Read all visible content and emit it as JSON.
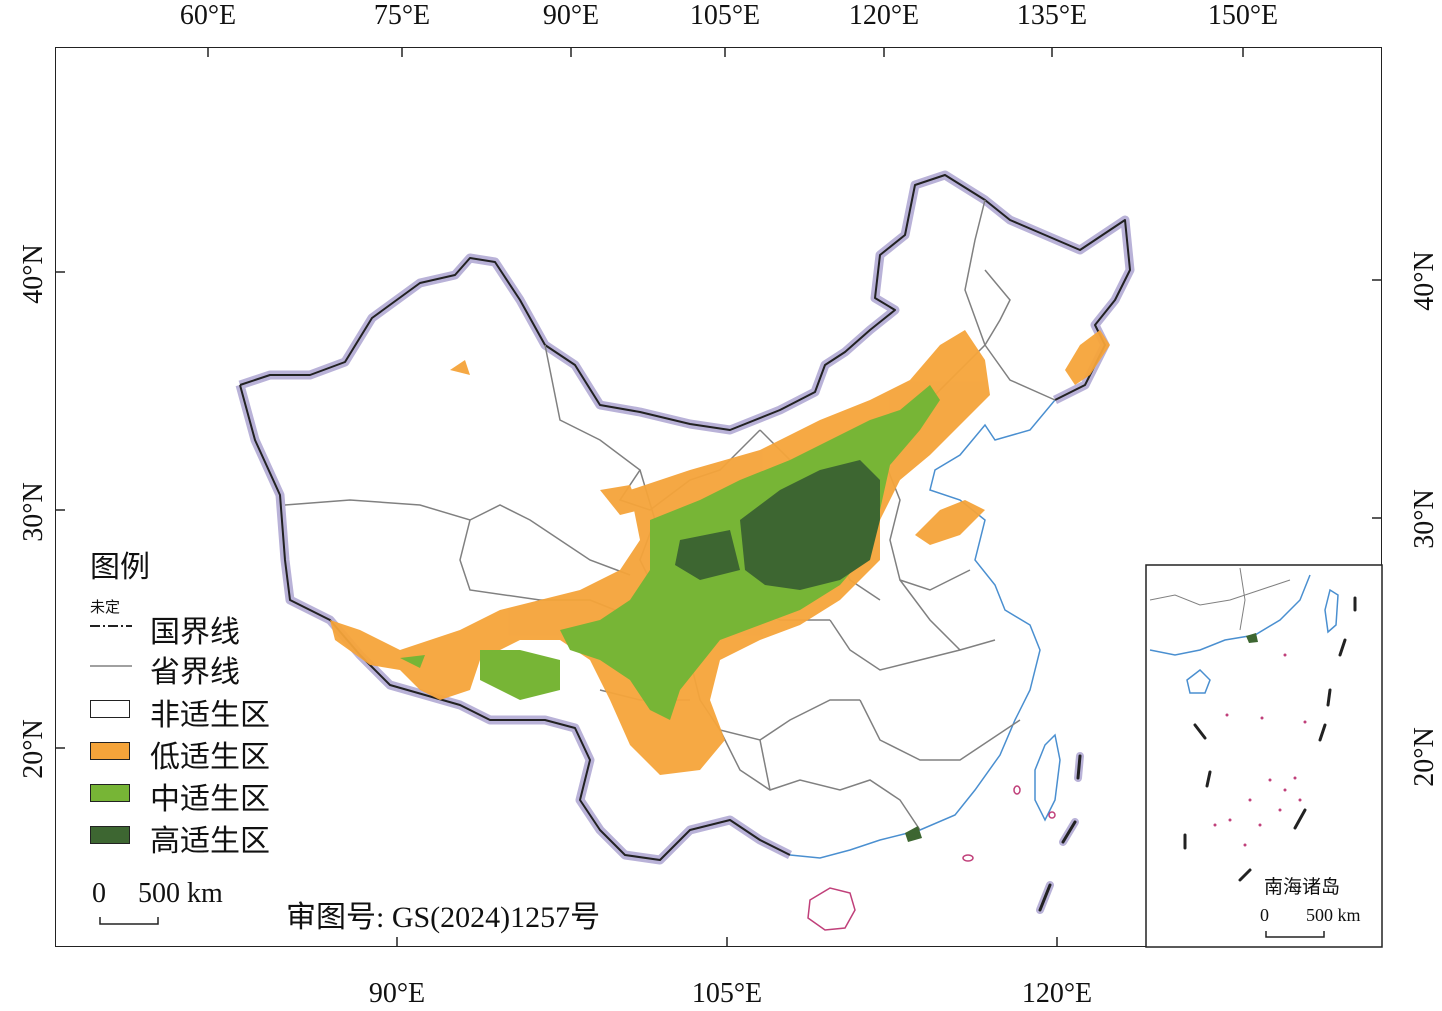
{
  "axes": {
    "top_ticks": [
      "60°E",
      "75°E",
      "90°E",
      "105°E",
      "120°E",
      "135°E",
      "150°E"
    ],
    "bottom_ticks": [
      "90°E",
      "105°E",
      "120°E"
    ],
    "left_ticks": [
      "40°N",
      "30°N",
      "20°N"
    ],
    "right_ticks": [
      "40°N",
      "30°N",
      "20°N"
    ]
  },
  "legend": {
    "title": "图例",
    "undetermined_note": "未定",
    "items": [
      {
        "label": "国界线",
        "type": "line-dashed"
      },
      {
        "label": "省界线",
        "type": "line-thin"
      },
      {
        "label": "非适生区",
        "type": "fill",
        "color": "#ffffff"
      },
      {
        "label": "低适生区",
        "type": "fill",
        "color": "#f5a43a"
      },
      {
        "label": "中适生区",
        "type": "fill",
        "color": "#77b536"
      },
      {
        "label": "高适生区",
        "type": "fill",
        "color": "#3d6631"
      }
    ]
  },
  "scale_bar": {
    "zero": "0",
    "distance": "500 km"
  },
  "approval_number": "审图号: GS(2024)1257号",
  "inset": {
    "title": "南海诸岛",
    "scale_zero": "0",
    "scale_distance": "500 km"
  },
  "colors": {
    "border_halo": "#b9b2d8",
    "national_border": "#222222",
    "province_line": "#808080",
    "coast": "#4a8fd0",
    "island_outline": "#c0407a",
    "low": "#f5a43a",
    "mid": "#77b536",
    "high": "#3d6631"
  }
}
